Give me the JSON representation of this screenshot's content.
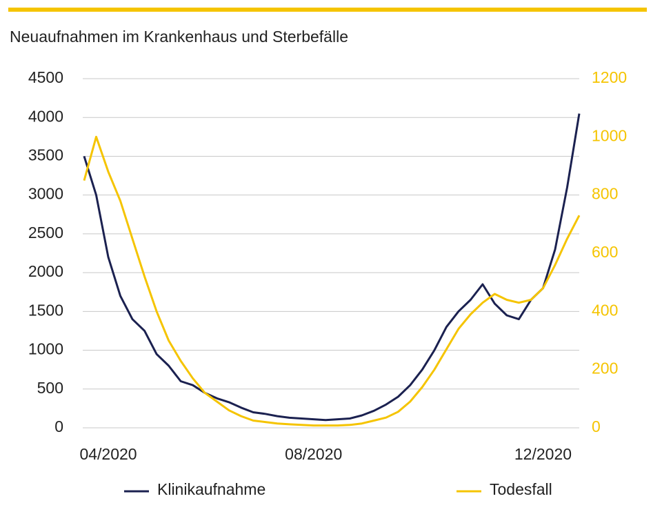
{
  "chart_data": {
    "type": "line",
    "subtitle": "Neuaufnahmen im Krankenhaus und Sterbefälle",
    "categories": [
      null,
      null,
      "04/2020",
      null,
      null,
      null,
      null,
      null,
      null,
      null,
      null,
      null,
      null,
      null,
      null,
      null,
      null,
      null,
      null,
      "08/2020",
      null,
      null,
      null,
      null,
      null,
      null,
      null,
      null,
      null,
      null,
      null,
      null,
      null,
      null,
      null,
      null,
      null,
      null,
      "12/2020",
      null,
      null,
      null
    ],
    "series": [
      {
        "name": "Klinikaufnahme",
        "color": "#1b2150",
        "values": [
          3500,
          3000,
          2200,
          1700,
          1400,
          1250,
          950,
          800,
          600,
          550,
          450,
          380,
          330,
          260,
          200,
          180,
          150,
          130,
          120,
          110,
          100,
          110,
          120,
          160,
          220,
          300,
          400,
          550,
          750,
          1000,
          1300,
          1500,
          1650,
          1850,
          1600,
          1450,
          1400,
          1650,
          1800,
          2300,
          3100,
          4050
        ]
      },
      {
        "name": "Todesfall",
        "color": "#f5c400",
        "axis": "y2",
        "values": [
          850,
          1000,
          880,
          780,
          650,
          520,
          400,
          300,
          230,
          170,
          120,
          90,
          60,
          40,
          25,
          20,
          15,
          12,
          10,
          8,
          8,
          8,
          10,
          15,
          25,
          35,
          55,
          90,
          140,
          200,
          270,
          340,
          390,
          430,
          460,
          440,
          430,
          440,
          480,
          560,
          650,
          730
        ]
      }
    ],
    "ylim": [
      0,
      4500
    ],
    "yticks": [
      0,
      500,
      1000,
      1500,
      2000,
      2500,
      3000,
      3500,
      4000,
      4500
    ],
    "y2lim": [
      0,
      1200
    ],
    "y2ticks": [
      0,
      200,
      400,
      600,
      800,
      1000,
      1200
    ],
    "grid": true
  }
}
